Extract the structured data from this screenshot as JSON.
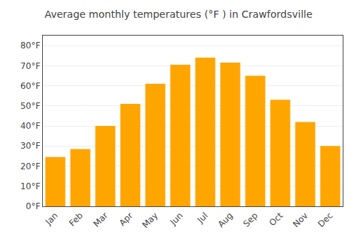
{
  "chart_data": {
    "type": "bar",
    "title": "Average monthly temperatures (°F ) in Crawfordsville",
    "categories": [
      "Jan",
      "Feb",
      "Mar",
      "Apr",
      "May",
      "Jun",
      "Jul",
      "Aug",
      "Sep",
      "Oct",
      "Nov",
      "Dec"
    ],
    "values": [
      24.5,
      28.5,
      40.0,
      51.0,
      61.0,
      70.5,
      74.0,
      71.5,
      65.0,
      53.0,
      42.0,
      30.0
    ],
    "color": "#FFA500",
    "ylim": [
      0,
      85
    ],
    "yticks": [
      {
        "value": 0,
        "label": "0°F"
      },
      {
        "value": 10,
        "label": "10°F"
      },
      {
        "value": 20,
        "label": "20°F"
      },
      {
        "value": 30,
        "label": "30°F"
      },
      {
        "value": 40,
        "label": "40°F"
      },
      {
        "value": 50,
        "label": "50°F"
      },
      {
        "value": 60,
        "label": "60°F"
      },
      {
        "value": 70,
        "label": "70°F"
      },
      {
        "value": 80,
        "label": "80°F"
      }
    ],
    "grid": true
  }
}
